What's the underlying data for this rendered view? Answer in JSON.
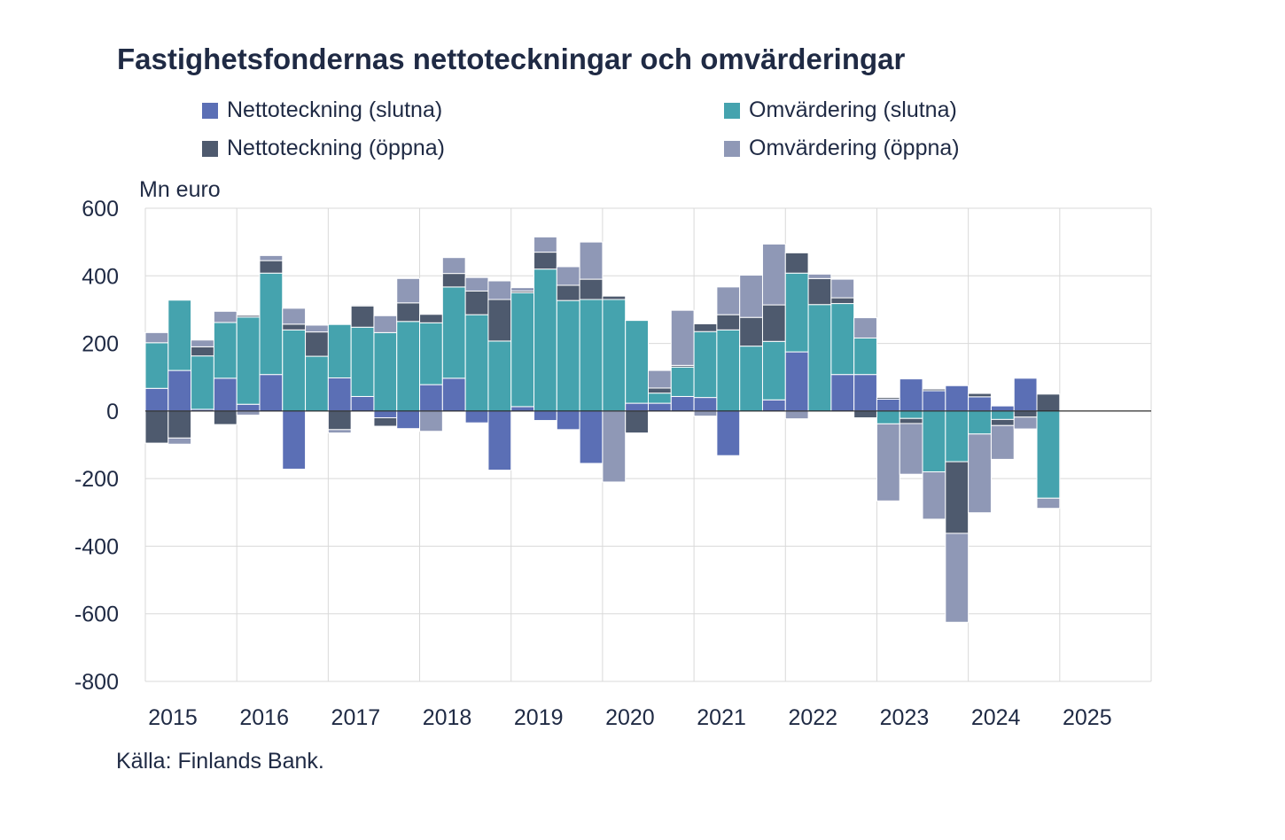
{
  "title": "Fastighetsfondernas nettoteckningar och omvärderingar",
  "source": "Källa: Finlands Bank.",
  "colors": {
    "nettoteckning_slutna": "#5b6fb5",
    "omvardering_slutna": "#45a3ae",
    "nettoteckning_oppna": "#4e5a6e",
    "omvardering_oppna": "#8f98b6",
    "axis_text": "#1f2a44",
    "grid": "#d9d9d9"
  },
  "chart_data": {
    "type": "bar",
    "stacked": true,
    "unit_label": "Mn euro",
    "ylim": [
      -800,
      600
    ],
    "yticks": [
      600,
      400,
      200,
      0,
      -200,
      -400,
      -600,
      -800
    ],
    "year_labels": [
      "2015",
      "2016",
      "2017",
      "2018",
      "2019",
      "2020",
      "2021",
      "2022",
      "2023",
      "2024",
      "2025"
    ],
    "grid": true,
    "legend_position": "top",
    "categories": [
      "2015Q1",
      "2015Q2",
      "2015Q3",
      "2015Q4",
      "2016Q1",
      "2016Q2",
      "2016Q3",
      "2016Q4",
      "2017Q1",
      "2017Q2",
      "2017Q3",
      "2017Q4",
      "2018Q1",
      "2018Q2",
      "2018Q3",
      "2018Q4",
      "2019Q1",
      "2019Q2",
      "2019Q3",
      "2019Q4",
      "2020Q1",
      "2020Q2",
      "2020Q3",
      "2020Q4",
      "2021Q1",
      "2021Q2",
      "2021Q3",
      "2021Q4",
      "2022Q1",
      "2022Q2",
      "2022Q3",
      "2022Q4",
      "2023Q1",
      "2023Q2",
      "2023Q3",
      "2023Q4",
      "2024Q1",
      "2024Q2",
      "2024Q3",
      "2024Q4"
    ],
    "series": [
      {
        "name": "Nettoteckning (slutna)",
        "color_key": "nettoteckning_slutna",
        "values": [
          67,
          120,
          5,
          97,
          20,
          108,
          -172,
          0,
          98,
          43,
          -20,
          -52,
          78,
          97,
          -35,
          -175,
          13,
          -28,
          -55,
          -155,
          0,
          23,
          23,
          43,
          40,
          -132,
          0,
          33,
          175,
          0,
          108,
          108,
          35,
          95,
          60,
          75,
          42,
          15,
          97,
          0
        ]
      },
      {
        "name": "Omvärdering (slutna)",
        "color_key": "omvardering_slutna",
        "values": [
          135,
          208,
          158,
          165,
          258,
          300,
          240,
          162,
          158,
          205,
          232,
          265,
          183,
          270,
          285,
          207,
          337,
          420,
          327,
          330,
          330,
          245,
          30,
          87,
          195,
          240,
          192,
          173,
          233,
          315,
          210,
          108,
          -38,
          -22,
          -180,
          -150,
          -68,
          -25,
          0,
          -258
        ]
      },
      {
        "name": "Nettoteckning (öppna)",
        "color_key": "nettoteckning_oppna",
        "values": [
          -95,
          -80,
          27,
          -40,
          5,
          37,
          17,
          72,
          -55,
          63,
          -25,
          55,
          25,
          40,
          70,
          123,
          5,
          50,
          45,
          60,
          10,
          -65,
          15,
          5,
          23,
          45,
          85,
          108,
          60,
          77,
          17,
          -20,
          5,
          -15,
          5,
          -212,
          10,
          -18,
          -18,
          50
        ]
      },
      {
        "name": "Omvärdering (öppna)",
        "color_key": "omvardering_oppna",
        "values": [
          30,
          -18,
          20,
          33,
          -12,
          15,
          47,
          20,
          -10,
          3,
          50,
          72,
          -60,
          47,
          40,
          55,
          10,
          45,
          55,
          110,
          -210,
          0,
          52,
          163,
          -15,
          82,
          125,
          180,
          -23,
          13,
          55,
          60,
          -228,
          -150,
          -140,
          -263,
          -233,
          -100,
          -35,
          -30
        ]
      }
    ]
  }
}
